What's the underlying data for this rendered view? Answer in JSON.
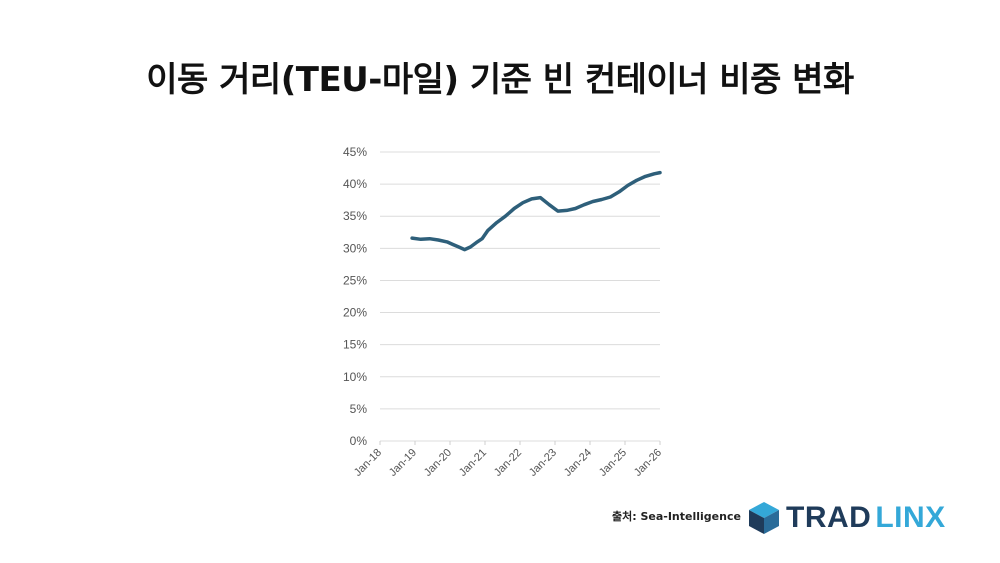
{
  "title": "이동 거리(TEU-마일) 기준 빈 컨테이너 비중 변화",
  "source": "출처: Sea-Intelligence",
  "logo": {
    "part1": "TRAD",
    "part2": "LINX",
    "color_dark": "#1f3b5a",
    "color_light": "#34a8d8"
  },
  "chart_data": {
    "type": "line",
    "title": "",
    "xlabel": "",
    "ylabel": "",
    "y_tick_labels": [
      "0%",
      "5%",
      "10%",
      "15%",
      "20%",
      "25%",
      "30%",
      "35%",
      "40%",
      "45%"
    ],
    "x_tick_labels": [
      "Jan-18",
      "Jan-19",
      "Jan-20",
      "Jan-21",
      "Jan-22",
      "Jan-23",
      "Jan-24",
      "Jan-25",
      "Jan-26"
    ],
    "ylim": [
      0,
      45
    ],
    "xlim": [
      "2018-01",
      "2026-01"
    ],
    "grid": true,
    "line_color": "#2e5f7a",
    "series": [
      {
        "x": [
          "2018-12",
          "2019-03",
          "2019-06",
          "2019-09",
          "2019-12",
          "2020-02",
          "2020-04",
          "2020-06",
          "2020-08",
          "2020-10",
          "2020-12",
          "2021-02",
          "2021-05",
          "2021-08",
          "2021-11",
          "2022-02",
          "2022-05",
          "2022-08",
          "2022-11",
          "2023-02",
          "2023-05",
          "2023-08",
          "2023-11",
          "2024-02",
          "2024-05",
          "2024-08",
          "2024-11",
          "2025-02",
          "2025-05",
          "2025-08",
          "2025-11",
          "2026-01"
        ],
        "values": [
          31.6,
          31.4,
          31.5,
          31.3,
          31.0,
          30.6,
          30.2,
          29.8,
          30.2,
          30.9,
          31.5,
          32.8,
          34.0,
          35.0,
          36.2,
          37.1,
          37.7,
          37.9,
          36.8,
          35.8,
          35.9,
          36.2,
          36.8,
          37.3,
          37.6,
          38.0,
          38.8,
          39.8,
          40.6,
          41.2,
          41.6,
          41.8
        ]
      }
    ]
  }
}
